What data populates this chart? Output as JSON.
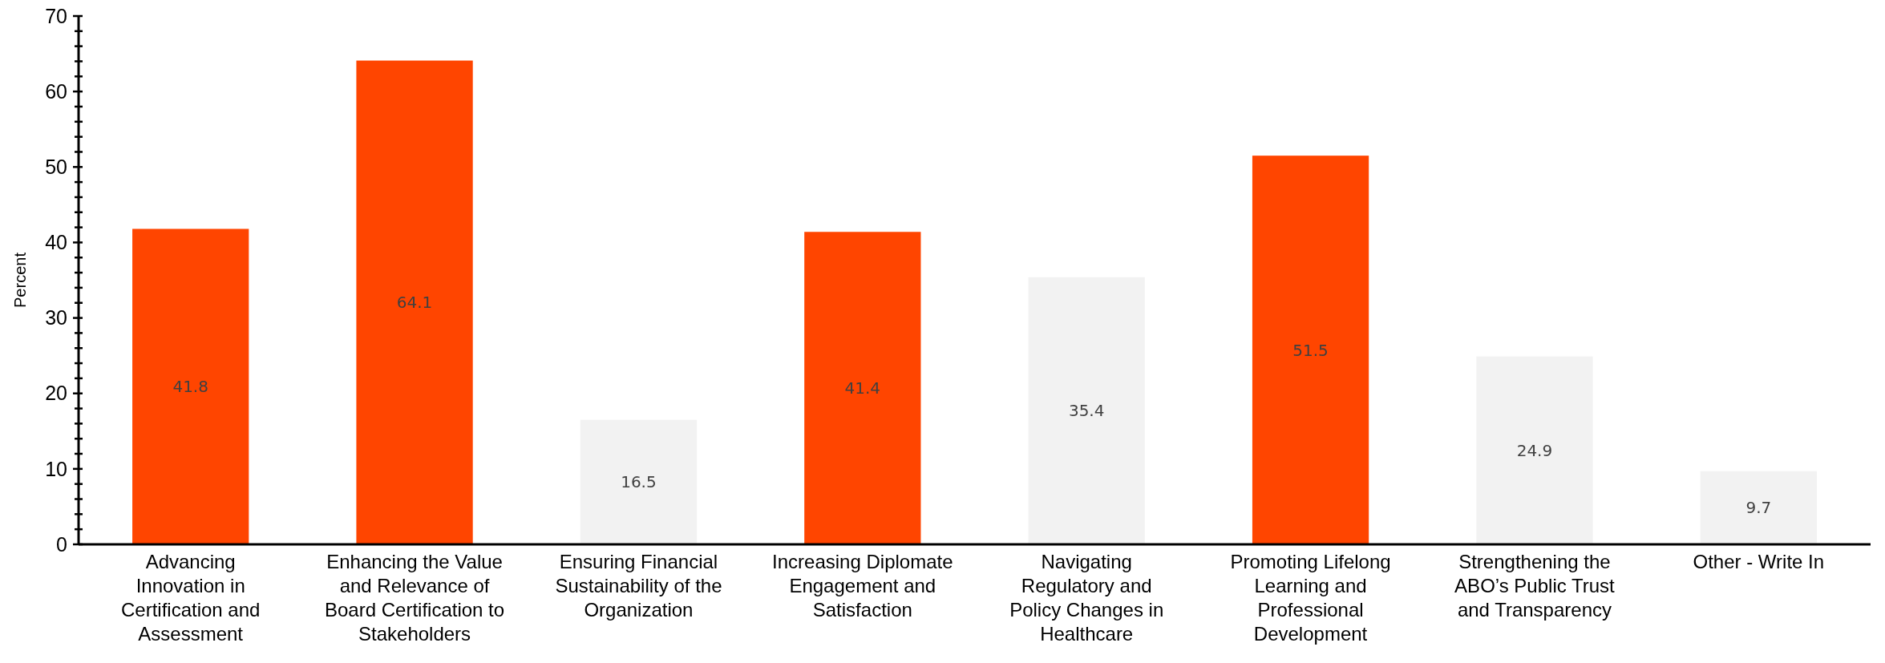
{
  "chart_data": {
    "type": "bar",
    "ylabel": "Percent",
    "categories": [
      "Advancing Innovation in Certification and Assessment",
      "Enhancing the Value and Relevance of Board Certification to Stakeholders",
      "Ensuring Financial Sustainability of the Organization",
      "Increasing Diplomate Engagement and Satisfaction",
      "Navigating Regulatory and Policy Changes in Healthcare",
      "Promoting Lifelong Learning and Professional Development",
      "Strengthening the ABO’s Public Trust and Transparency",
      "Other - Write In"
    ],
    "values": [
      41.8,
      64.1,
      16.5,
      41.4,
      35.4,
      51.5,
      24.9,
      9.7
    ],
    "colors": [
      "#ff4500",
      "#ff4500",
      "#f2f2f2",
      "#ff4500",
      "#f2f2f2",
      "#ff4500",
      "#f2f2f2",
      "#f2f2f2"
    ],
    "data_labels": true,
    "grid": false,
    "ylim": [
      0,
      70
    ],
    "yticks": [
      0,
      {
        "value": 2,
        "label": null
      },
      {
        "value": 4,
        "label": null
      },
      {
        "value": 6,
        "label": null
      },
      {
        "value": 8,
        "label": null
      },
      10,
      {
        "value": 12,
        "label": null
      },
      {
        "value": 14,
        "label": null
      },
      {
        "value": 16,
        "label": null
      },
      {
        "value": 18,
        "label": null
      },
      20,
      {
        "value": 22,
        "label": null
      },
      {
        "value": 24,
        "label": null
      },
      {
        "value": 26,
        "label": null
      },
      {
        "value": 28,
        "label": null
      },
      30,
      {
        "value": 32,
        "label": null
      },
      {
        "value": 34,
        "label": null
      },
      {
        "value": 36,
        "label": null
      },
      {
        "value": 38,
        "label": null
      },
      40,
      {
        "value": 42,
        "label": null
      },
      {
        "value": 44,
        "label": null
      },
      {
        "value": 46,
        "label": null
      },
      {
        "value": 48,
        "label": null
      },
      50,
      {
        "value": 52,
        "label": null
      },
      {
        "value": 54,
        "label": null
      },
      {
        "value": 56,
        "label": null
      },
      {
        "value": 58,
        "label": null
      },
      60,
      {
        "value": 62,
        "label": null
      },
      {
        "value": 64,
        "label": null
      },
      {
        "value": 66,
        "label": null
      },
      {
        "value": 68,
        "label": null
      },
      70
    ]
  }
}
